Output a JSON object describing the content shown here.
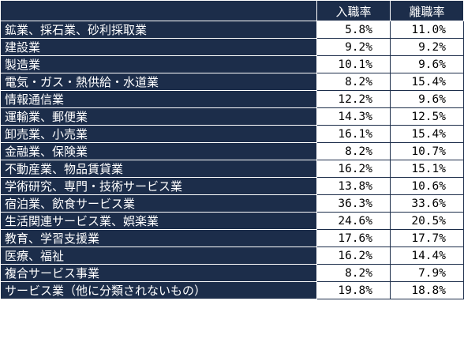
{
  "header": {
    "col_hire": "入職率",
    "col_leave": "離職率"
  },
  "rows": [
    {
      "industry": "鉱業、採石業、砂利採取業",
      "hire": "5.8%",
      "leave": "11.0%"
    },
    {
      "industry": "建設業",
      "hire": "9.2%",
      "leave": "9.2%"
    },
    {
      "industry": "製造業",
      "hire": "10.1%",
      "leave": "9.6%"
    },
    {
      "industry": "電気・ガス・熱供給・水道業",
      "hire": "8.2%",
      "leave": "15.4%"
    },
    {
      "industry": "情報通信業",
      "hire": "12.2%",
      "leave": "9.6%"
    },
    {
      "industry": "運輸業、郵便業",
      "hire": "14.3%",
      "leave": "12.5%"
    },
    {
      "industry": "卸売業、小売業",
      "hire": "16.1%",
      "leave": "15.4%"
    },
    {
      "industry": "金融業、保険業",
      "hire": "8.2%",
      "leave": "10.7%"
    },
    {
      "industry": "不動産業、物品賃貸業",
      "hire": "16.2%",
      "leave": "15.1%"
    },
    {
      "industry": "学術研究、専門・技術サービス業",
      "hire": "13.8%",
      "leave": "10.6%"
    },
    {
      "industry": "宿泊業、飲食サービス業",
      "hire": "36.3%",
      "leave": "33.6%"
    },
    {
      "industry": "生活関連サービス業、娯楽業",
      "hire": "24.6%",
      "leave": "20.5%"
    },
    {
      "industry": "教育、学習支援業",
      "hire": "17.6%",
      "leave": "17.7%"
    },
    {
      "industry": "医療、福祉",
      "hire": "16.2%",
      "leave": "14.4%"
    },
    {
      "industry": "複合サービス事業",
      "hire": "8.2%",
      "leave": "7.9%"
    },
    {
      "industry": "サービス業（他に分類されないもの）",
      "hire": "19.8%",
      "leave": "18.8%"
    }
  ],
  "colors": {
    "header_bg": "#1c2d4a",
    "header_text": "#ffffff",
    "cell_bg": "#ffffff",
    "cell_text": "#000000"
  }
}
